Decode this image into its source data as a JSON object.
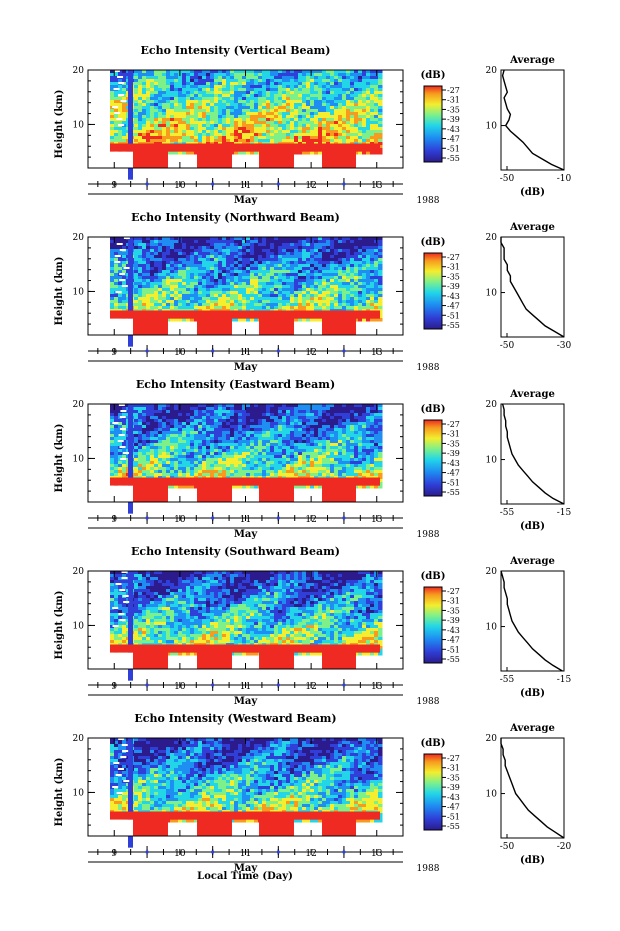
{
  "figure": {
    "bottom_label": "Local Time (Day)",
    "month_label": "May",
    "year_label": "1988"
  },
  "chart_data": [
    {
      "type": "heatmap",
      "title": "Echo Intensity (Vertical Beam)",
      "ylabel": "Height (km)",
      "xlabel": "May",
      "x_ticks": [
        "9",
        "10",
        "11",
        "12",
        "13"
      ],
      "y_ticks": [
        "10",
        "20"
      ],
      "ylim": [
        2,
        20
      ],
      "xlim": [
        8.6,
        13.4
      ],
      "colorbar": {
        "unit": "(dB)",
        "ticks": [
          "-27",
          "-31",
          "-35",
          "-39",
          "-43",
          "-47",
          "-51",
          "-55"
        ]
      },
      "profile": {
        "title": "Average",
        "xlabel": "(dB)",
        "x_ticks": [
          "-50",
          "-10"
        ],
        "xlim": [
          -50,
          -10
        ],
        "height": [
          2,
          3,
          4,
          5,
          6,
          7,
          8,
          9,
          10,
          11,
          12,
          13,
          14,
          15,
          16,
          17,
          18,
          19,
          20
        ],
        "db": [
          -10,
          -18,
          -24,
          -30,
          -33,
          -36,
          -40,
          -44,
          -47,
          -45,
          -44,
          -46,
          -47,
          -48,
          -46,
          -47,
          -48,
          -49,
          -48
        ]
      }
    },
    {
      "type": "heatmap",
      "title": "Echo Intensity (Northward Beam)",
      "ylabel": "Height (km)",
      "xlabel": "May",
      "x_ticks": [
        "9",
        "10",
        "11",
        "12",
        "13"
      ],
      "y_ticks": [
        "10",
        "20"
      ],
      "ylim": [
        2,
        20
      ],
      "xlim": [
        8.6,
        13.4
      ],
      "colorbar": {
        "unit": "(dB)",
        "ticks": [
          "-27",
          "-31",
          "-35",
          "-39",
          "-43",
          "-47",
          "-51",
          "-55"
        ]
      },
      "profile": {
        "title": "Average",
        "xlabel": "",
        "x_ticks": [
          "-50",
          "-30"
        ],
        "xlim": [
          -50,
          -30
        ],
        "height": [
          2,
          3,
          4,
          5,
          6,
          7,
          8,
          9,
          10,
          11,
          12,
          13,
          14,
          15,
          16,
          17,
          18,
          19,
          20
        ],
        "db": [
          -30,
          -33,
          -36,
          -38,
          -40,
          -42,
          -43,
          -44,
          -45,
          -46,
          -47,
          -47,
          -48,
          -48,
          -49,
          -49,
          -49,
          -50,
          -50
        ]
      }
    },
    {
      "type": "heatmap",
      "title": "Echo Intensity (Eastward Beam)",
      "ylabel": "Height (km)",
      "xlabel": "May",
      "x_ticks": [
        "9",
        "10",
        "11",
        "12",
        "13"
      ],
      "y_ticks": [
        "10",
        "20"
      ],
      "ylim": [
        2,
        20
      ],
      "xlim": [
        8.6,
        13.4
      ],
      "colorbar": {
        "unit": "(dB)",
        "ticks": [
          "-27",
          "-31",
          "-35",
          "-39",
          "-43",
          "-47",
          "-51",
          "-55"
        ]
      },
      "profile": {
        "title": "Average",
        "xlabel": "(dB)",
        "x_ticks": [
          "-55",
          "-15"
        ],
        "xlim": [
          -55,
          -15
        ],
        "height": [
          2,
          3,
          4,
          5,
          6,
          7,
          8,
          9,
          10,
          11,
          12,
          13,
          14,
          15,
          16,
          17,
          18,
          19,
          20
        ],
        "db": [
          -15,
          -22,
          -27,
          -31,
          -35,
          -38,
          -41,
          -44,
          -46,
          -48,
          -49,
          -50,
          -51,
          -51,
          -52,
          -52,
          -53,
          -53,
          -54
        ]
      }
    },
    {
      "type": "heatmap",
      "title": "Echo Intensity (Southward Beam)",
      "ylabel": "Height (km)",
      "xlabel": "May",
      "x_ticks": [
        "9",
        "10",
        "11",
        "12",
        "13"
      ],
      "y_ticks": [
        "10",
        "20"
      ],
      "ylim": [
        2,
        20
      ],
      "xlim": [
        8.6,
        13.4
      ],
      "colorbar": {
        "unit": "(dB)",
        "ticks": [
          "-27",
          "-31",
          "-35",
          "-39",
          "-43",
          "-47",
          "-51",
          "-55"
        ]
      },
      "profile": {
        "title": "Average",
        "xlabel": "(dB)",
        "x_ticks": [
          "-55",
          "-15"
        ],
        "xlim": [
          -55,
          -15
        ],
        "height": [
          2,
          3,
          4,
          5,
          6,
          7,
          8,
          9,
          10,
          11,
          12,
          13,
          14,
          15,
          16,
          17,
          18,
          19,
          20
        ],
        "db": [
          -16,
          -22,
          -27,
          -31,
          -35,
          -38,
          -41,
          -44,
          -46,
          -48,
          -49,
          -50,
          -51,
          -51,
          -52,
          -53,
          -53,
          -54,
          -55
        ]
      }
    },
    {
      "type": "heatmap",
      "title": "Echo Intensity (Westward Beam)",
      "ylabel": "Height (km)",
      "xlabel": "May",
      "x_ticks": [
        "9",
        "10",
        "11",
        "12",
        "13"
      ],
      "y_ticks": [
        "10",
        "20"
      ],
      "ylim": [
        2,
        20
      ],
      "xlim": [
        8.6,
        13.4
      ],
      "colorbar": {
        "unit": "(dB)",
        "ticks": [
          "-27",
          "-31",
          "-35",
          "-39",
          "-43",
          "-47",
          "-51",
          "-55"
        ]
      },
      "profile": {
        "title": "Average",
        "xlabel": "(dB)",
        "x_ticks": [
          "-50",
          "-20"
        ],
        "xlim": [
          -50,
          -20
        ],
        "height": [
          2,
          3,
          4,
          5,
          6,
          7,
          8,
          9,
          10,
          11,
          12,
          13,
          14,
          15,
          16,
          17,
          18,
          19,
          20
        ],
        "db": [
          -20,
          -24,
          -28,
          -31,
          -34,
          -37,
          -39,
          -41,
          -43,
          -44,
          -45,
          -46,
          -47,
          -48,
          -48,
          -49,
          -49,
          -50,
          -50
        ]
      }
    }
  ]
}
